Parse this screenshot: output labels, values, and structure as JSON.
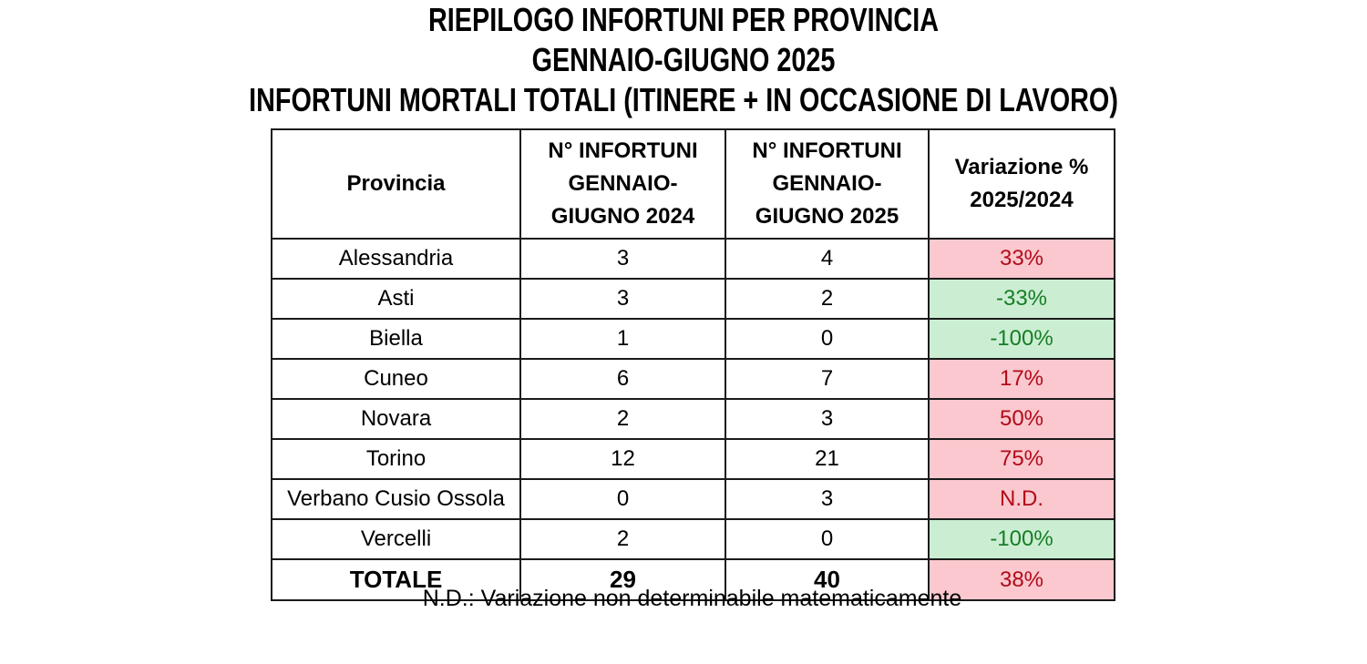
{
  "title": {
    "line1": "RIEPILOGO INFORTUNI PER PROVINCIA",
    "line2": "GENNAIO-GIUGNO 2025",
    "line3": "INFORTUNI MORTALI TOTALI (ITINERE + IN OCCASIONE DI LAVORO)"
  },
  "chart_data": {
    "type": "table",
    "title": "RIEPILOGO INFORTUNI PER PROVINCIA - GENNAIO-GIUGNO 2025 - INFORTUNI MORTALI TOTALI (ITINERE + IN OCCASIONE DI LAVORO)",
    "columns": [
      "Provincia",
      "N° INFORTUNI GENNAIO-GIUGNO 2024",
      "N° INFORTUNI GENNAIO-GIUGNO 2025",
      "Variazione % 2025/2024"
    ],
    "header_display": {
      "provincia": "Provincia",
      "count_2024": "N° INFORTUNI\nGENNAIO-\nGIUGNO 2024",
      "count_2025": "N° INFORTUNI\nGENNAIO-\nGIUGNO 2025",
      "variazione": "Variazione %\n2025/2024"
    },
    "rows": [
      {
        "provincia": "Alessandria",
        "v2024": "3",
        "v2025": "4",
        "variazione": "33%",
        "trend": "up"
      },
      {
        "provincia": "Asti",
        "v2024": "3",
        "v2025": "2",
        "variazione": "-33%",
        "trend": "down"
      },
      {
        "provincia": "Biella",
        "v2024": "1",
        "v2025": "0",
        "variazione": "-100%",
        "trend": "down"
      },
      {
        "provincia": "Cuneo",
        "v2024": "6",
        "v2025": "7",
        "variazione": "17%",
        "trend": "up"
      },
      {
        "provincia": "Novara",
        "v2024": "2",
        "v2025": "3",
        "variazione": "50%",
        "trend": "up"
      },
      {
        "provincia": "Torino",
        "v2024": "12",
        "v2025": "21",
        "variazione": "75%",
        "trend": "up"
      },
      {
        "provincia": "Verbano Cusio Ossola",
        "v2024": "0",
        "v2025": "3",
        "variazione": "N.D.",
        "trend": "up"
      },
      {
        "provincia": "Vercelli",
        "v2024": "2",
        "v2025": "0",
        "variazione": "-100%",
        "trend": "down"
      }
    ],
    "total": {
      "provincia": "TOTALE",
      "v2024": "29",
      "v2025": "40",
      "variazione": "38%",
      "trend": "up"
    },
    "note": "N.D.: Variazione non determinabile matematicamente"
  },
  "colors": {
    "increase_bg": "#fac8ce",
    "increase_text": "#b20a19",
    "decrease_bg": "#cbeed2",
    "decrease_text": "#177d26",
    "border": "#1a1a1a"
  }
}
